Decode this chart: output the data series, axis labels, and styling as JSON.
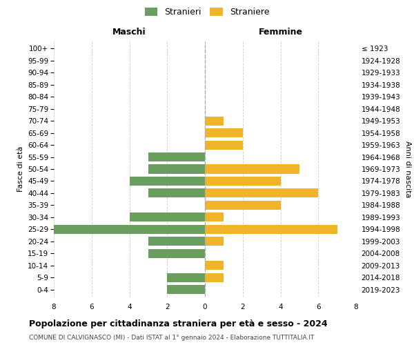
{
  "age_groups": [
    "0-4",
    "5-9",
    "10-14",
    "15-19",
    "20-24",
    "25-29",
    "30-34",
    "35-39",
    "40-44",
    "45-49",
    "50-54",
    "55-59",
    "60-64",
    "65-69",
    "70-74",
    "75-79",
    "80-84",
    "85-89",
    "90-94",
    "95-99",
    "100+"
  ],
  "birth_years": [
    "2019-2023",
    "2014-2018",
    "2009-2013",
    "2004-2008",
    "1999-2003",
    "1994-1998",
    "1989-1993",
    "1984-1988",
    "1979-1983",
    "1974-1978",
    "1969-1973",
    "1964-1968",
    "1959-1963",
    "1954-1958",
    "1949-1953",
    "1944-1948",
    "1939-1943",
    "1934-1938",
    "1929-1933",
    "1924-1928",
    "≤ 1923"
  ],
  "maschi": [
    2,
    2,
    0,
    3,
    3,
    8,
    4,
    0,
    3,
    4,
    3,
    3,
    0,
    0,
    0,
    0,
    0,
    0,
    0,
    0,
    0
  ],
  "femmine": [
    0,
    1,
    1,
    0,
    1,
    7,
    1,
    4,
    6,
    4,
    5,
    0,
    2,
    2,
    1,
    0,
    0,
    0,
    0,
    0,
    0
  ],
  "color_maschi": "#6a9e5e",
  "color_femmine": "#f0b429",
  "title": "Popolazione per cittadinanza straniera per età e sesso - 2024",
  "subtitle": "COMUNE DI CALVIGNASCO (MI) - Dati ISTAT al 1° gennaio 2024 - Elaborazione TUTTITALIA.IT",
  "legend_maschi": "Stranieri",
  "legend_femmine": "Straniere",
  "xlabel_left": "Maschi",
  "xlabel_right": "Femmine",
  "ylabel_left": "Fasce di età",
  "ylabel_right": "Anni di nascita",
  "xlim": 8,
  "background_color": "#ffffff",
  "grid_color": "#cccccc"
}
